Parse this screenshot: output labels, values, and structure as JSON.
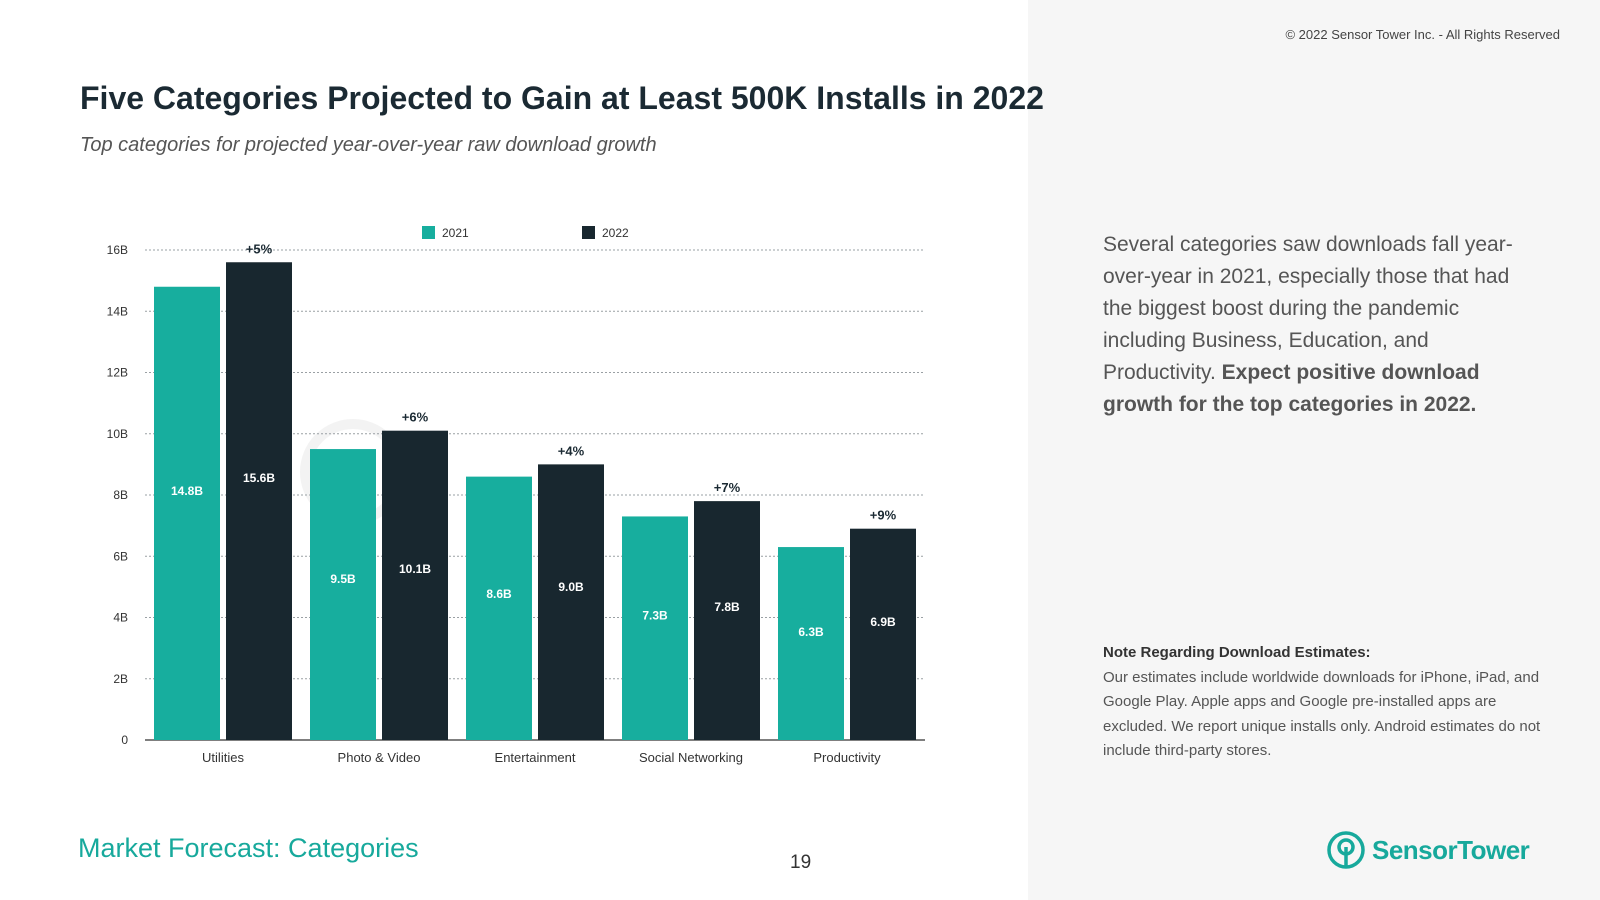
{
  "copyright": "© 2022 Sensor Tower Inc. - All Rights Reserved",
  "header": {
    "title": "Five Categories Projected to Gain at Least 500K Installs in 2022",
    "subtitle": "Top categories for projected year-over-year raw download growth"
  },
  "colors": {
    "series_2021": "#17ae9e",
    "series_2022": "#18272f",
    "brand": "#17a99c"
  },
  "chart_data": {
    "type": "bar",
    "title": "",
    "xlabel": "",
    "ylabel": "",
    "categories": [
      "Utilities",
      "Photo & Video",
      "Entertainment",
      "Social Networking",
      "Productivity"
    ],
    "series": [
      {
        "name": "2021",
        "values": [
          14.8,
          9.5,
          8.6,
          7.3,
          6.3
        ],
        "labels": [
          "14.8B",
          "9.5B",
          "8.6B",
          "7.3B",
          "6.3B"
        ]
      },
      {
        "name": "2022",
        "values": [
          15.6,
          10.1,
          9.0,
          7.8,
          6.9
        ],
        "labels": [
          "15.6B",
          "10.1B",
          "9.0B",
          "7.8B",
          "6.9B"
        ]
      }
    ],
    "growth_labels": [
      "+5%",
      "+6%",
      "+4%",
      "+7%",
      "+9%"
    ],
    "yticks": [
      0,
      2,
      4,
      6,
      8,
      10,
      12,
      14,
      16
    ],
    "ytick_labels": [
      "0",
      "2B",
      "4B",
      "6B",
      "8B",
      "10B",
      "12B",
      "14B",
      "16B"
    ],
    "ylim": [
      0,
      16
    ],
    "grid": true,
    "legend": "top-center"
  },
  "summary": {
    "text_plain": "Several categories saw downloads fall year-over-year in 2021, especially those that had the biggest boost during the pandemic including Business, Education, and Productivity. ",
    "text_bold": "Expect positive download growth for the top categories in 2022."
  },
  "note": {
    "heading": "Note Regarding Download Estimates:",
    "body": "Our estimates include worldwide downloads for iPhone, iPad, and Google Play. Apple apps and Google pre-installed apps are excluded. We report unique installs only. Android estimates do not include third-party stores."
  },
  "footer": {
    "section_label": "Market Forecast: Categories",
    "page_number": "19",
    "brand_name": "SensorTower"
  }
}
